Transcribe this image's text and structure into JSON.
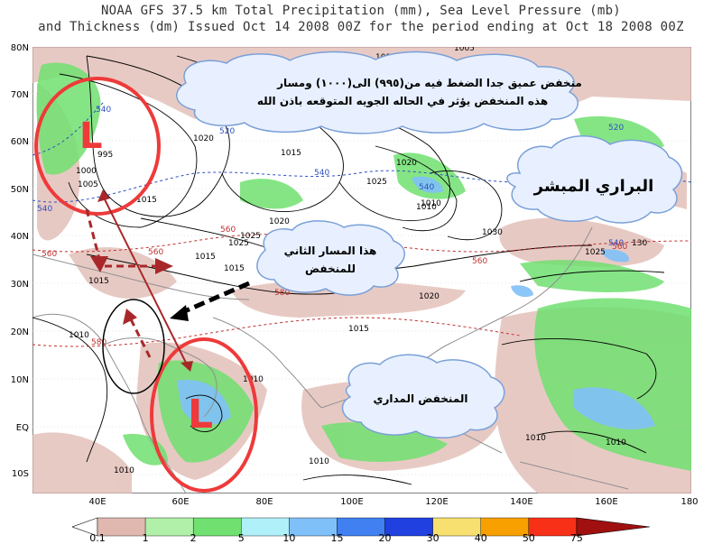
{
  "header": {
    "title_line1": "NOAA GFS 37.5 km Total Precipitation (mm), Sea Level Pressure (mb)",
    "title_line2": "and Thickness (dm)  Issued Oct 14 2008 00Z for the period ending at Oct 18 2008 00Z"
  },
  "axes": {
    "lat_labels": [
      "80N",
      "70N",
      "60N",
      "50N",
      "40N",
      "30N",
      "20N",
      "10N",
      "EQ",
      "10S"
    ],
    "lon_labels": [
      "40E",
      "60E",
      "80E",
      "100E",
      "120E",
      "140E",
      "160E",
      "180"
    ]
  },
  "isobars": {
    "labels": [
      "995",
      "1000",
      "1005",
      "1010",
      "1010",
      "1015",
      "1015",
      "1015",
      "1015",
      "1015",
      "1015",
      "1015",
      "1020",
      "1020",
      "1020",
      "1020",
      "1025",
      "1025",
      "1025",
      "1025",
      "1030",
      "1010",
      "1010",
      "1010",
      "1010",
      "1010",
      "1010",
      "1010",
      "1005",
      "130"
    ]
  },
  "thickness": {
    "labels": [
      "540",
      "520",
      "540",
      "540",
      "540",
      "540",
      "520",
      "560",
      "560",
      "560",
      "560",
      "580",
      "580",
      "560"
    ]
  },
  "annotations": {
    "cloud_top": "منخفض عميق جدا الضغط فيه من(٩٩٥) الى(١٠٠٠) ومسار هذه المنخفض يؤثر في الحاله الجويه المتوقعه باذن الله",
    "cloud_top_line1": "منخفض عميق جدا الضغط فيه من(٩٩٥) الى(١٠٠٠) ومسار",
    "cloud_top_line2": "هذه المنخفض يؤثر في الحاله الجويه المتوقعه باذن الله",
    "cloud_right": "البراري المبشر",
    "cloud_mid_line1": "هذا المسار الثاني",
    "cloud_mid_line2": "للمنخفض",
    "cloud_bottom": "المنخفض المداري",
    "low_marker_north": "L",
    "low_marker_south": "L"
  },
  "legend": {
    "labels": [
      "0.1",
      "1",
      "2",
      "5",
      "10",
      "15",
      "20",
      "30",
      "40",
      "50",
      "75"
    ],
    "colors": [
      "#e0b8b0",
      "#b0f0a8",
      "#70e070",
      "#b0f0f8",
      "#80c0f8",
      "#4080f0",
      "#2040e0",
      "#f8e070",
      "#f8a000",
      "#f83018",
      "#a01010"
    ]
  },
  "colors": {
    "ocean": "#ffffff",
    "land_outline": "#909090",
    "precip_light": "#e0b8b0",
    "precip_green": "#70e070",
    "highlight_red": "#ee3a3a",
    "cloud_fill": "#e8f0ff",
    "cloud_stroke": "#7aa0d8"
  }
}
